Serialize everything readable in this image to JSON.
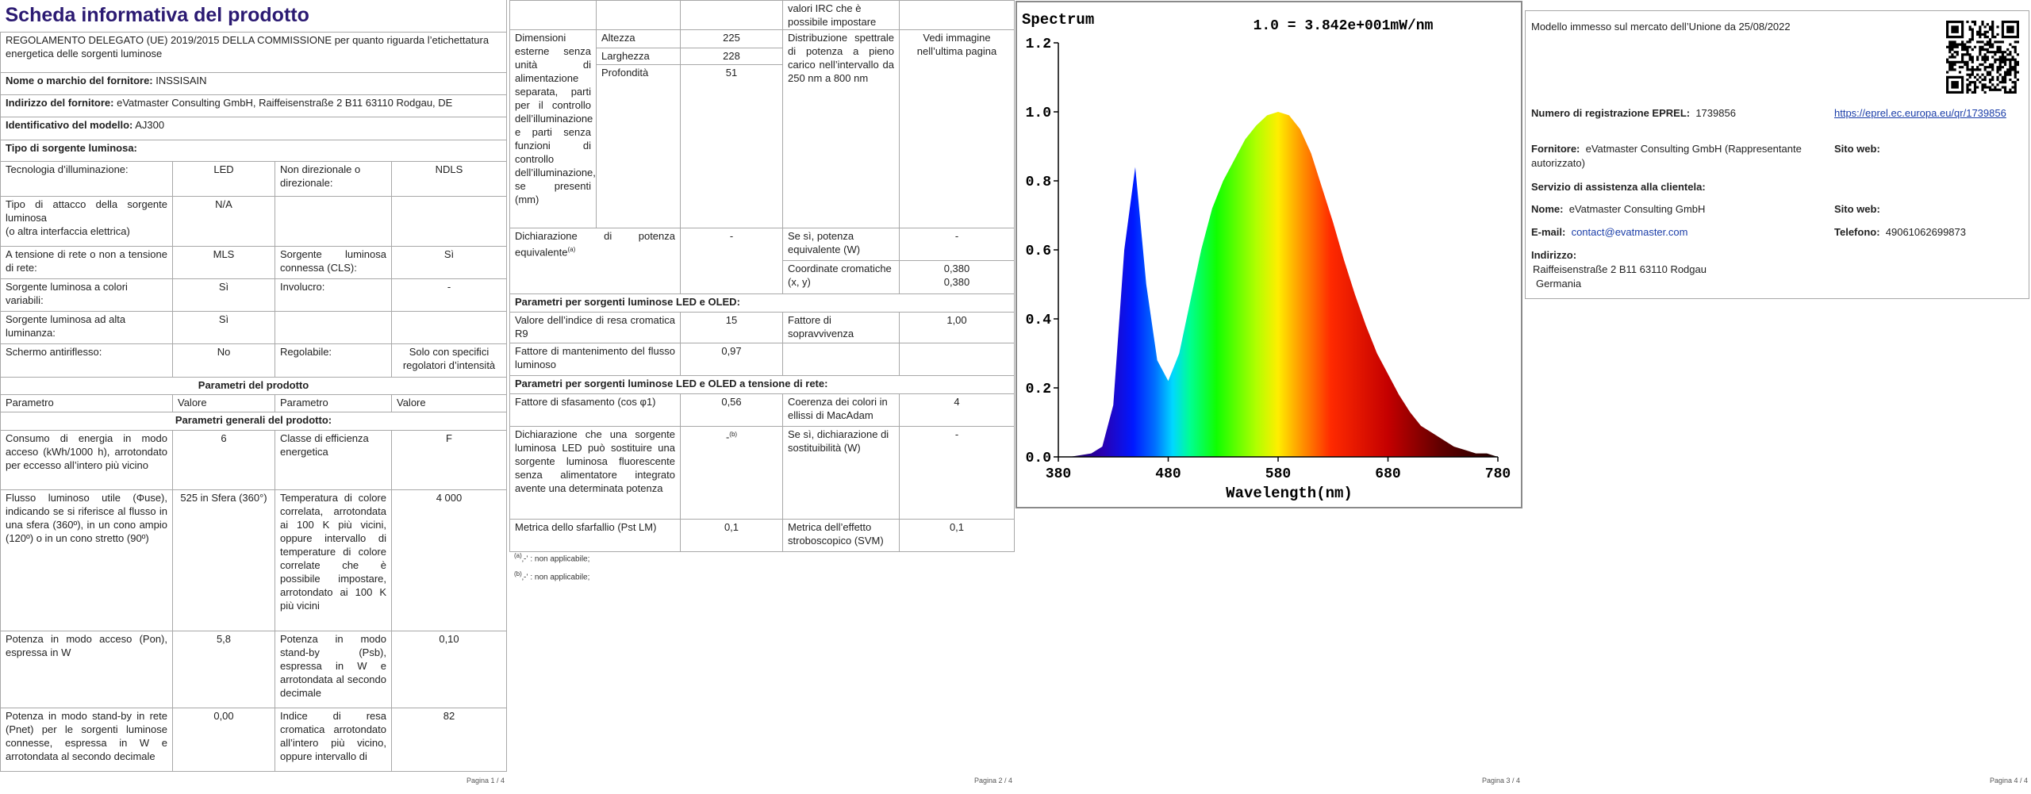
{
  "pages": [
    {
      "title": "Scheda informativa del prodotto",
      "regulation": "REGOLAMENTO DELEGATO (UE) 2019/2015 DELLA COMMISSIONE per quanto riguarda l’etichettatura energetica delle sorgenti luminose",
      "supplier_name": {
        "label": "Nome o marchio del fornitore:",
        "value": "INSSISAIN"
      },
      "supplier_address": {
        "label": "Indirizzo del fornitore:",
        "value": "eVatmaster Consulting GmbH, Raiffeisenstraße 2 B11 63110 Rodgau, DE"
      },
      "model": {
        "label": "Identificativo del modello:",
        "value": "AJ300"
      },
      "source_type": "Tipo di sorgente luminosa:",
      "type_rows": [
        [
          "Tecnologia d’illuminazione:",
          "LED",
          "Non direzionale o direzionale:",
          "NDLS"
        ],
        [
          "Tipo di attacco della sorgente luminosa\n(o altra interfaccia elettrica)",
          "N/A"
        ],
        [
          "A tensione di rete o non a tensione di rete:",
          "MLS",
          "Sorgente luminosa connessa (CLS):",
          "Sì"
        ],
        [
          "Sorgente luminosa a colori variabili:",
          "Sì",
          "Involucro:",
          "-"
        ],
        [
          "Sorgente luminosa ad alta luminanza:",
          "Sì"
        ],
        [
          "Schermo antiriflesso:",
          "No",
          "Regolabile:",
          "Solo con specifici regolatori d’intensità"
        ]
      ],
      "params_heading": "Parametri del prodotto",
      "columns": [
        "Parametro",
        "Valore",
        "Parametro",
        "Valore"
      ],
      "general_heading": "Parametri generali del prodotto:",
      "general_rows": [
        [
          "Consumo di energia in modo acceso (kWh/1000 h), arrotondato per eccesso all’intero più vicino",
          "6",
          "Classe di efficienza energetica",
          "F"
        ],
        [
          "Flusso luminoso utile (Φuse), indicando se si riferisce al flusso in una sfera (360º), in un cono ampio (120º) o in un cono stretto (90º)",
          "525 in Sfera (360°)",
          "Temperatura di colore correlata, arrotondata ai 100 K più vicini, oppure intervallo di temperature di colore correlate che è possibile impostare, arrotondato ai 100 K più vicini",
          "4 000"
        ],
        [
          "Potenza in modo acceso (Pon), espressa in W",
          "5,8",
          "Potenza in modo stand-by (Psb), espressa in W e arrotondata al secondo decimale",
          "0,10"
        ],
        [
          "Potenza in modo stand-by in rete (Pnet) per le sorgenti luminose connesse, espressa in W e arrotondata al secondo decimale",
          "0,00",
          "Indice di resa cromatica arrotondato all’intero più vicino, oppure intervallo di",
          "82"
        ]
      ],
      "footer": "Pagina 1 / 4"
    },
    {
      "continued": "valori IRC che è possibile impostare",
      "dimensions": {
        "label": "Dimensioni esterne senza unità di alimentazione separata, parti per il controllo dell’illuminazione e parti senza funzioni di controllo dell’illuminazione, se presenti (mm)",
        "rows": [
          [
            "Altezza",
            "225"
          ],
          [
            "Larghezza",
            "228"
          ],
          [
            "Profondità",
            "51"
          ]
        ]
      },
      "spectral": [
        "Distribuzione spettrale di potenza a pieno carico nell’intervallo da 250 nm a 800 nm",
        "Vedi immagine nell’ultima pagina"
      ],
      "equivalent": {
        "label": "Dichiarazione di potenza equivalente",
        "mark": "(a)",
        "value": "-",
        "label2": "Se sì, potenza equivalente (W)",
        "value2": "-"
      },
      "chromaticity": {
        "label": "Coordinate cromatiche (x, y)",
        "x": "0,380",
        "y": "0,380"
      },
      "led_heading": "Parametri per sorgenti luminose LED e OLED:",
      "led_rows": [
        [
          "Valore dell’indice di resa cromatica R9",
          "15",
          "Fattore di sopravvivenza",
          "1,00"
        ],
        [
          "Fattore di mantenimento del flusso luminoso",
          "0,97"
        ]
      ],
      "mains_heading": "Parametri per sorgenti luminose LED e OLED a tensione di rete:",
      "mains_rows": [
        [
          "Fattore di sfasamento (cos φ1)",
          "0,56",
          "Coerenza dei colori in ellissi di MacAdam",
          "4"
        ],
        [
          "Dichiarazione che una sorgente luminosa LED può sostituire una sorgente luminosa fluorescente senza alimentatore integrato avente una determinata potenza",
          "-",
          "Se sì, dichiarazione di sostituibilità (W)",
          "-"
        ],
        [
          "Metrica dello sfarfallio (Pst LM)",
          "0,1",
          "Metrica dell’effetto stroboscopico (SVM)",
          "0,1"
        ]
      ],
      "replace_mark": "(b)",
      "footnotes": [
        {
          "mark": "(a)",
          "text": "‚-‛ : non applicabile;"
        },
        {
          "mark": "(b)",
          "text": "‚-‛ : non applicabile;"
        }
      ],
      "footer": "Pagina 2 / 4"
    },
    {
      "footer": "Pagina 3 / 4"
    },
    {
      "market": "Modello immesso sul mercato dell’Unione da 25/08/2022",
      "eprel": {
        "label": "Numero di registrazione EPREL:",
        "value": "1739856",
        "link": "https://eprel.ec.europa.eu/qr/1739856"
      },
      "supplier": {
        "label": "Fornitore:",
        "value": "eVatmaster Consulting GmbH (Rappresentante autorizzato)",
        "website": "Sito web:"
      },
      "service": "Servizio di assistenza alla clientela:",
      "name": {
        "label": "Nome:",
        "value": "eVatmaster Consulting GmbH",
        "website": "Sito web:"
      },
      "email": {
        "label": "E-mail:",
        "value": "contact@evatmaster.com"
      },
      "phone": {
        "label": "Telefono:",
        "value": "49061062699873"
      },
      "address": {
        "label": "Indirizzo:",
        "lines": [
          "Raiffeisenstraße 2 B11 63110 Rodgau",
          "Germania"
        ]
      },
      "footer": "Pagina 4 / 4"
    }
  ],
  "chart_data": {
    "type": "area",
    "title": "Spectrum",
    "note": "1.0 = 3.842e+001mW/nm",
    "x_label": "Wavelength(nm)",
    "x": [
      380,
      390,
      400,
      410,
      420,
      430,
      440,
      450,
      460,
      470,
      480,
      490,
      500,
      510,
      520,
      530,
      540,
      550,
      560,
      570,
      580,
      590,
      600,
      610,
      620,
      630,
      640,
      650,
      660,
      670,
      680,
      690,
      700,
      710,
      720,
      730,
      740,
      750,
      760,
      770,
      780
    ],
    "values": [
      0,
      0,
      0.005,
      0.01,
      0.03,
      0.15,
      0.6,
      0.84,
      0.5,
      0.28,
      0.22,
      0.3,
      0.45,
      0.6,
      0.72,
      0.8,
      0.86,
      0.92,
      0.96,
      0.99,
      1.0,
      0.99,
      0.95,
      0.88,
      0.78,
      0.68,
      0.57,
      0.47,
      0.38,
      0.3,
      0.24,
      0.18,
      0.13,
      0.09,
      0.07,
      0.05,
      0.03,
      0.02,
      0.01,
      0.01,
      0
    ],
    "xlim": [
      380,
      780
    ],
    "ylim": [
      0,
      1.2
    ],
    "xticks": [
      380,
      480,
      580,
      680,
      780
    ],
    "yticks": [
      {
        "value": 0,
        "label": "0.0"
      },
      0.2,
      0.4,
      0.6,
      0.8,
      {
        "value": 1,
        "label": "1.0"
      },
      1.2
    ]
  }
}
